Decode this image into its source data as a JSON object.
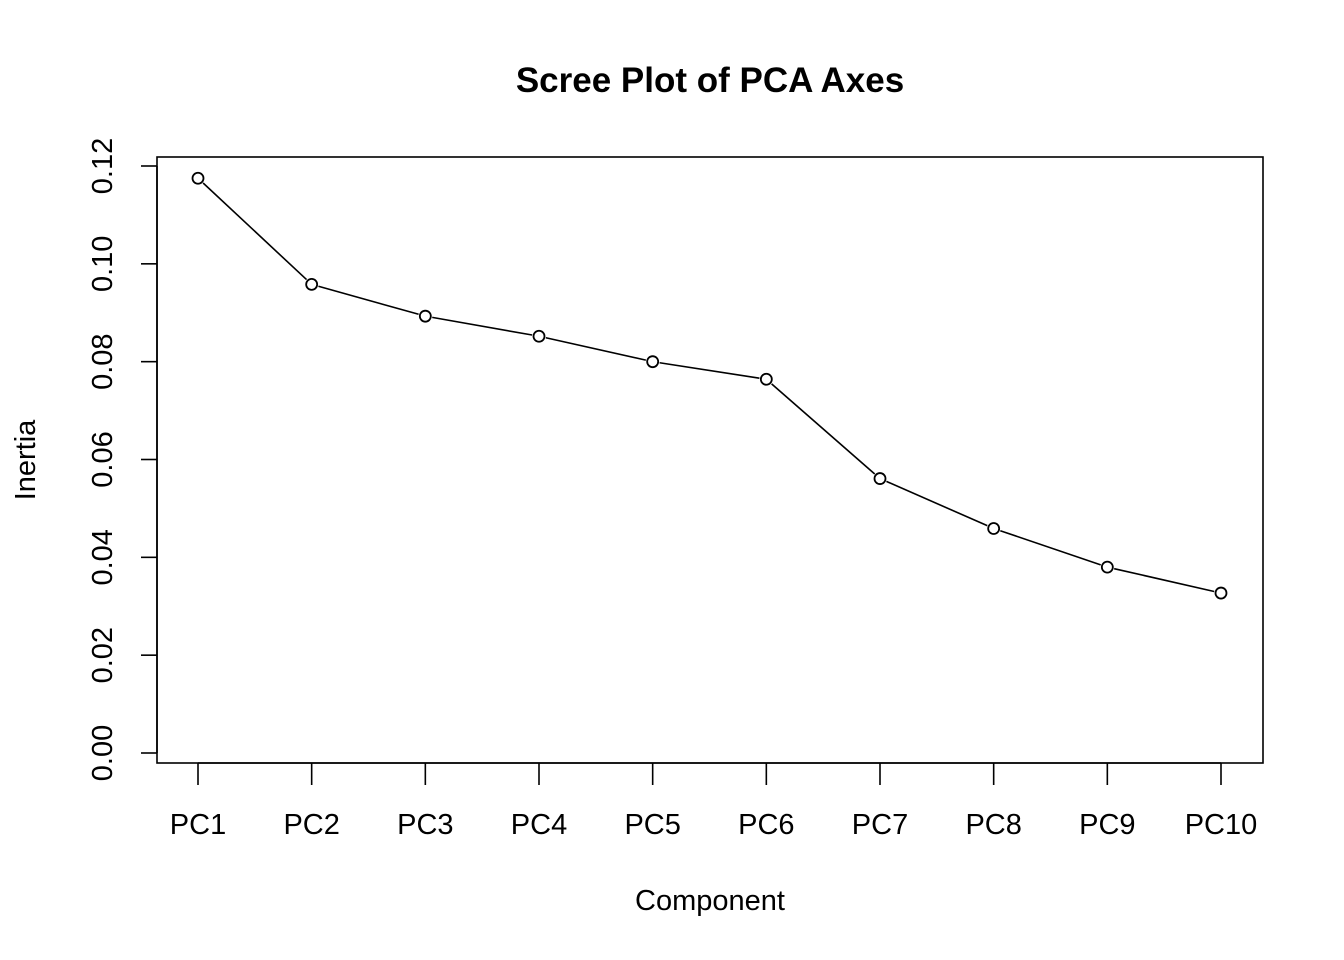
{
  "chart_data": {
    "type": "line",
    "title": "Scree Plot of PCA Axes",
    "xlabel": "Component",
    "ylabel": "Inertia",
    "categories": [
      "PC1",
      "PC2",
      "PC3",
      "PC4",
      "PC5",
      "PC6",
      "PC7",
      "PC8",
      "PC9",
      "PC10"
    ],
    "values": [
      0.1175,
      0.0958,
      0.0893,
      0.0852,
      0.08,
      0.0764,
      0.0561,
      0.0459,
      0.038,
      0.0327
    ],
    "ylim": [
      0,
      0.12
    ],
    "yticks": [
      "0.00",
      "0.02",
      "0.04",
      "0.06",
      "0.08",
      "0.10",
      "0.12"
    ],
    "markers": "open-circle",
    "grid": false,
    "colors": {
      "line": "#000000",
      "background": "#ffffff"
    }
  }
}
